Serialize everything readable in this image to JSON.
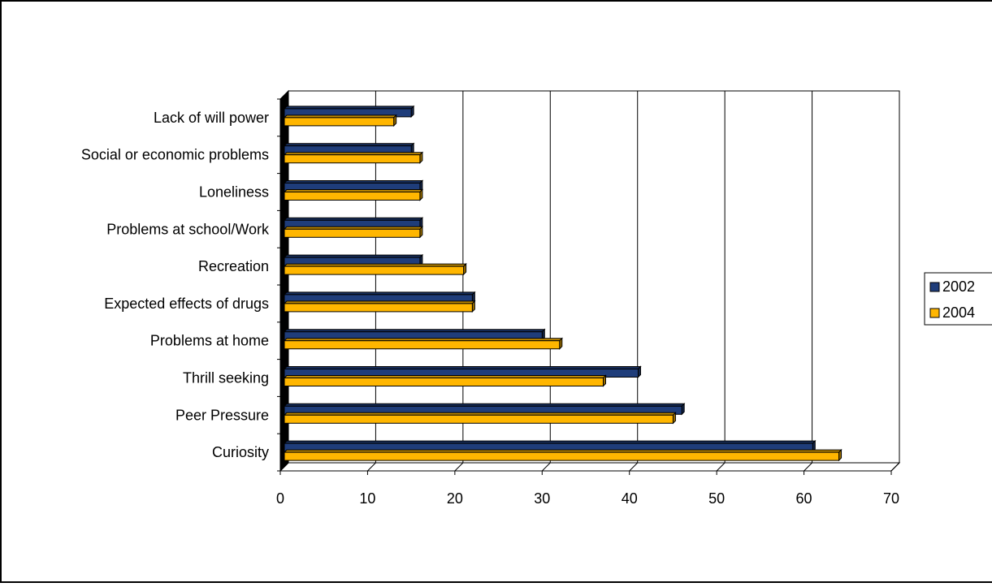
{
  "chart_data": {
    "type": "bar",
    "orientation": "horizontal",
    "title": "",
    "xlabel": "",
    "ylabel": "",
    "categories": [
      "Curiosity",
      "Peer Pressure",
      "Thrill seeking",
      "Problems at home",
      "Expected effects of drugs",
      "Recreation",
      "Problems at school/Work",
      "Loneliness",
      "Social or economic problems",
      "Lack of will power"
    ],
    "series": [
      {
        "name": "2002",
        "color": "#1f3d7a",
        "values": [
          61,
          46,
          41,
          30,
          22,
          16,
          16,
          16,
          15,
          15
        ]
      },
      {
        "name": "2004",
        "color": "#ffb600",
        "values": [
          64,
          45,
          37,
          32,
          22,
          21,
          16,
          16,
          16,
          13
        ]
      }
    ],
    "xlim": [
      0,
      70
    ],
    "xticks": [
      0,
      10,
      20,
      30,
      40,
      50,
      60,
      70
    ],
    "grid": true,
    "legend_position": "right",
    "style": "3d"
  }
}
